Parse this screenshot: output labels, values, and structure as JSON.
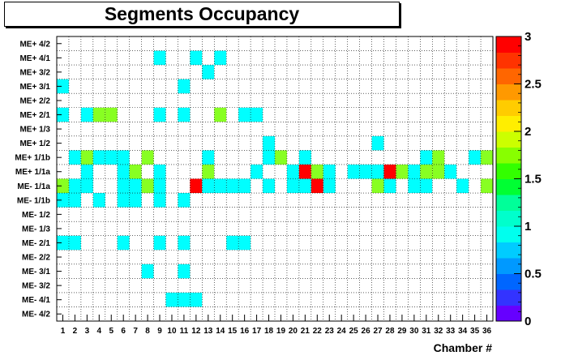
{
  "chart_data": {
    "type": "heatmap",
    "title": "Segments Occupancy",
    "xlabel": "Chamber #",
    "ylabel": "",
    "x": [
      1,
      2,
      3,
      4,
      5,
      6,
      7,
      8,
      9,
      10,
      11,
      12,
      13,
      14,
      15,
      16,
      17,
      18,
      19,
      20,
      21,
      22,
      23,
      24,
      25,
      26,
      27,
      28,
      29,
      30,
      31,
      32,
      33,
      34,
      35,
      36
    ],
    "y": [
      "ME+ 4/2",
      "ME+ 4/1",
      "ME+ 3/2",
      "ME+ 3/1",
      "ME+ 2/2",
      "ME+ 2/1",
      "ME+ 1/3",
      "ME+ 1/2",
      "ME+ 1/1b",
      "ME+ 1/1a",
      "ME- 1/1a",
      "ME- 1/1b",
      "ME- 1/2",
      "ME- 1/3",
      "ME- 2/1",
      "ME- 2/2",
      "ME- 3/1",
      "ME- 3/2",
      "ME- 4/1",
      "ME- 4/2"
    ],
    "zlim": [
      0,
      3
    ],
    "z_ticks": [
      0,
      0.5,
      1,
      1.5,
      2,
      2.5,
      3
    ],
    "z_tick_labels": [
      "0",
      "0.5",
      "1",
      "1.5",
      "2",
      "2.5",
      "3"
    ],
    "grid": true,
    "values": [
      [
        0,
        0,
        0,
        0,
        0,
        0,
        0,
        0,
        0,
        0,
        0,
        0,
        0,
        0,
        0,
        0,
        0,
        0,
        0,
        0,
        0,
        0,
        0,
        0,
        0,
        0,
        0,
        0,
        0,
        0,
        0,
        0,
        0,
        0,
        0,
        0
      ],
      [
        0,
        0,
        0,
        0,
        0,
        0,
        0,
        0,
        1,
        0,
        0,
        1,
        0,
        1,
        0,
        0,
        0,
        0,
        0,
        0,
        0,
        0,
        0,
        0,
        0,
        0,
        0,
        0,
        0,
        0,
        0,
        0,
        0,
        0,
        0,
        0
      ],
      [
        0,
        0,
        0,
        0,
        0,
        0,
        0,
        0,
        0,
        0,
        0,
        0,
        1,
        0,
        0,
        0,
        0,
        0,
        0,
        0,
        0,
        0,
        0,
        0,
        0,
        0,
        0,
        0,
        0,
        0,
        0,
        0,
        0,
        0,
        0,
        0
      ],
      [
        1,
        0,
        0,
        0,
        0,
        0,
        0,
        0,
        0,
        0,
        1,
        0,
        0,
        0,
        0,
        0,
        0,
        0,
        0,
        0,
        0,
        0,
        0,
        0,
        0,
        0,
        0,
        0,
        0,
        0,
        0,
        0,
        0,
        0,
        0,
        0
      ],
      [
        0,
        0,
        0,
        0,
        0,
        0,
        0,
        0,
        0,
        0,
        0,
        0,
        0,
        0,
        0,
        0,
        0,
        0,
        0,
        0,
        0,
        0,
        0,
        0,
        0,
        0,
        0,
        0,
        0,
        0,
        0,
        0,
        0,
        0,
        0,
        0
      ],
      [
        1,
        0,
        1,
        2,
        2,
        0,
        0,
        0,
        1,
        0,
        1,
        0,
        0,
        2,
        0,
        1,
        1,
        0,
        0,
        0,
        0,
        0,
        0,
        0,
        0,
        0,
        0,
        0,
        0,
        0,
        0,
        0,
        0,
        0,
        0,
        0
      ],
      [
        0,
        0,
        0,
        0,
        0,
        0,
        0,
        0,
        0,
        0,
        0,
        0,
        0,
        0,
        0,
        0,
        0,
        0,
        0,
        0,
        0,
        0,
        0,
        0,
        0,
        0,
        0,
        0,
        0,
        0,
        0,
        0,
        0,
        0,
        0,
        0
      ],
      [
        0,
        0,
        0,
        0,
        0,
        0,
        0,
        0,
        0,
        0,
        0,
        0,
        0,
        0,
        0,
        0,
        0,
        1,
        0,
        0,
        0,
        0,
        0,
        0,
        0,
        0,
        1,
        0,
        0,
        0,
        0,
        0,
        0,
        0,
        0,
        0
      ],
      [
        0,
        1,
        2,
        1,
        1,
        1,
        0,
        2,
        0,
        0,
        0,
        0,
        1,
        0,
        0,
        0,
        0,
        1,
        2,
        0,
        1,
        0,
        0,
        0,
        0,
        0,
        0,
        0,
        0,
        0,
        1,
        2,
        0,
        0,
        1,
        2
      ],
      [
        0,
        0,
        1,
        0,
        0,
        1,
        2,
        0,
        1,
        0,
        0,
        0,
        2,
        0,
        0,
        0,
        1,
        0,
        0,
        1,
        3,
        2,
        1,
        0,
        1,
        1,
        1,
        3,
        2,
        1,
        2,
        2,
        1,
        0,
        0,
        0
      ],
      [
        2,
        1,
        1,
        0,
        0,
        1,
        1,
        2,
        1,
        0,
        0,
        3,
        1,
        1,
        1,
        1,
        0,
        1,
        0,
        1,
        1,
        3,
        1,
        0,
        0,
        0,
        2,
        1,
        0,
        1,
        1,
        0,
        0,
        1,
        0,
        2
      ],
      [
        1,
        1,
        0,
        1,
        0,
        1,
        1,
        0,
        1,
        0,
        1,
        0,
        0,
        0,
        0,
        0,
        0,
        0,
        0,
        0,
        0,
        0,
        0,
        0,
        0,
        0,
        0,
        0,
        0,
        0,
        0,
        0,
        0,
        0,
        0,
        0
      ],
      [
        0,
        0,
        0,
        0,
        0,
        0,
        0,
        0,
        0,
        0,
        0,
        0,
        0,
        0,
        0,
        0,
        0,
        0,
        0,
        0,
        0,
        0,
        0,
        0,
        0,
        0,
        0,
        0,
        0,
        0,
        0,
        0,
        0,
        0,
        0,
        0
      ],
      [
        0,
        0,
        0,
        0,
        0,
        0,
        0,
        0,
        0,
        0,
        0,
        0,
        0,
        0,
        0,
        0,
        0,
        0,
        0,
        0,
        0,
        0,
        0,
        0,
        0,
        0,
        0,
        0,
        0,
        0,
        0,
        0,
        0,
        0,
        0,
        0
      ],
      [
        1,
        1,
        0,
        0,
        0,
        1,
        0,
        0,
        1,
        0,
        1,
        0,
        0,
        0,
        1,
        1,
        0,
        0,
        0,
        0,
        0,
        0,
        0,
        0,
        0,
        0,
        0,
        0,
        0,
        0,
        0,
        0,
        0,
        0,
        0,
        0
      ],
      [
        0,
        0,
        0,
        0,
        0,
        0,
        0,
        0,
        0,
        0,
        0,
        0,
        0,
        0,
        0,
        0,
        0,
        0,
        0,
        0,
        0,
        0,
        0,
        0,
        0,
        0,
        0,
        0,
        0,
        0,
        0,
        0,
        0,
        0,
        0,
        0
      ],
      [
        0,
        0,
        0,
        0,
        0,
        0,
        0,
        1,
        0,
        0,
        1,
        0,
        0,
        0,
        0,
        0,
        0,
        0,
        0,
        0,
        0,
        0,
        0,
        0,
        0,
        0,
        0,
        0,
        0,
        0,
        0,
        0,
        0,
        0,
        0,
        0
      ],
      [
        0,
        0,
        0,
        0,
        0,
        0,
        0,
        0,
        0,
        0,
        0,
        0,
        0,
        0,
        0,
        0,
        0,
        0,
        0,
        0,
        0,
        0,
        0,
        0,
        0,
        0,
        0,
        0,
        0,
        0,
        0,
        0,
        0,
        0,
        0,
        0
      ],
      [
        0,
        0,
        0,
        0,
        0,
        0,
        0,
        0,
        0,
        1,
        1,
        1,
        0,
        0,
        0,
        0,
        0,
        0,
        0,
        0,
        0,
        0,
        0,
        0,
        0,
        0,
        0,
        0,
        0,
        0,
        0,
        0,
        0,
        0,
        0,
        0
      ],
      [
        0,
        0,
        0,
        0,
        0,
        0,
        0,
        0,
        0,
        0,
        0,
        0,
        0,
        0,
        0,
        0,
        0,
        0,
        0,
        0,
        0,
        0,
        0,
        0,
        0,
        0,
        0,
        0,
        0,
        0,
        0,
        0,
        0,
        0,
        0,
        0
      ]
    ]
  },
  "colors": {
    "palette": [
      "#6600ff",
      "#3333ff",
      "#0066ff",
      "#0099ff",
      "#00ccff",
      "#00ffee",
      "#00ffcc",
      "#00ff99",
      "#00ff33",
      "#33ff00",
      "#88ff00",
      "#ccff00",
      "#ffee00",
      "#ffcc00",
      "#ff9900",
      "#ff6600",
      "#ff3300",
      "#ff0000"
    ],
    "value_1": "#00ffff",
    "value_2": "#88ff22",
    "value_3": "#ff0000"
  }
}
